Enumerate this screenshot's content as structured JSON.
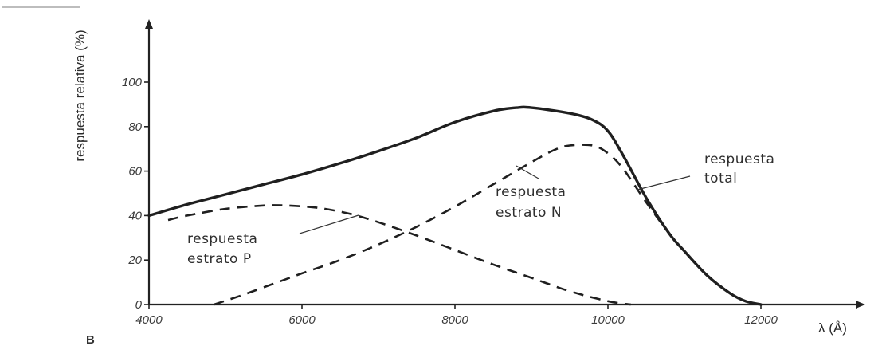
{
  "chart_data": {
    "type": "line",
    "panel_label": "B",
    "xlabel": "λ (Å)",
    "ylabel": "respuesta relativa (%)",
    "xlim": [
      4000,
      12000
    ],
    "ylim": [
      0,
      100
    ],
    "x_ticks": [
      "4000",
      "6000",
      "8000",
      "10000",
      "12000"
    ],
    "y_ticks": [
      "0",
      "20",
      "40",
      "60",
      "80",
      "100"
    ],
    "grid": false,
    "series": [
      {
        "label": [
          "respuesta",
          "total"
        ],
        "style": "solid",
        "x": [
          4000,
          4500,
          5000,
          5500,
          6000,
          6500,
          7000,
          7500,
          8000,
          8500,
          8800,
          9000,
          9500,
          9800,
          10000,
          10200,
          10500,
          10800,
          11000,
          11300,
          11600,
          11800,
          12000
        ],
        "y": [
          40,
          45,
          49.5,
          54,
          58.5,
          63.5,
          69,
          75,
          82,
          87,
          88.5,
          88.5,
          86,
          83,
          78,
          67,
          48,
          32,
          24,
          13,
          5,
          1.5,
          0
        ]
      },
      {
        "label": [
          "respuesta",
          "estrato P"
        ],
        "style": "dashed",
        "x": [
          4250,
          4500,
          5000,
          5500,
          5800,
          6200,
          6600,
          7000,
          7500,
          8000,
          8500,
          9000,
          9500,
          10000,
          10300
        ],
        "y": [
          38,
          40,
          43,
          44.5,
          44.5,
          43.5,
          41,
          37,
          31,
          24.5,
          18,
          12,
          6,
          1.5,
          0
        ]
      },
      {
        "label": [
          "respuesta",
          "estrato N"
        ],
        "style": "dashed",
        "x": [
          4850,
          5200,
          5600,
          6000,
          6500,
          7000,
          7500,
          8000,
          8500,
          9000,
          9300,
          9500,
          9800,
          10000,
          10200,
          10500,
          10800,
          11000,
          11300,
          11600,
          11800,
          12000
        ],
        "y": [
          0,
          4,
          9,
          14,
          20,
          27,
          35,
          44,
          54,
          64,
          69.5,
          71.5,
          71.5,
          68,
          61,
          46,
          32,
          24,
          13,
          5,
          1.5,
          0
        ]
      }
    ]
  }
}
